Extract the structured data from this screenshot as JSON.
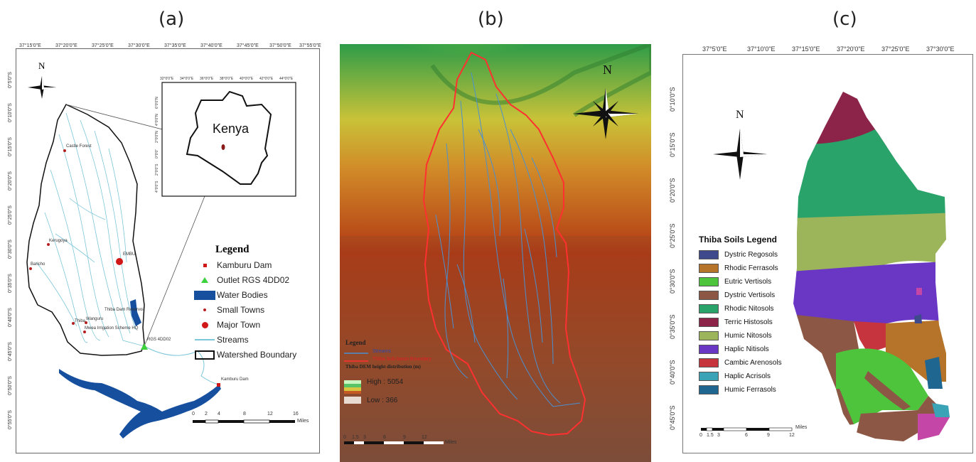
{
  "panels": {
    "a": {
      "letter": "(a)",
      "top_ticks": [
        "37°15'0\"E",
        "37°20'0\"E",
        "37°25'0\"E",
        "37°30'0\"E",
        "37°35'0\"E",
        "37°40'0\"E",
        "37°45'0\"E",
        "37°50'0\"E",
        "37°55'0\"E"
      ],
      "left_ticks": [
        "0°5'0\"S",
        "0°10'0\"S",
        "0°15'0\"S",
        "0°20'0\"S",
        "0°25'0\"S",
        "0°30'0\"S",
        "0°35'0\"S",
        "0°40'0\"S",
        "0°45'0\"S",
        "0°50'0\"S",
        "0°55'0\"S"
      ],
      "north_label": "N",
      "inset_label": "Kenya",
      "inset_top_ticks": [
        "32°0'0\"E",
        "34°0'0\"E",
        "36°0'0\"E",
        "38°0'0\"E",
        "40°0'0\"E",
        "42°0'0\"E",
        "44°0'0\"E"
      ],
      "inset_left_ticks": [
        "6°0'0\"N",
        "4°0'0\"N",
        "2°0'0\"N",
        "0°0'0\"",
        "2°0'0\"S",
        "4°0'0\"S"
      ],
      "places": [
        "Castle Forest",
        "Kerugoya",
        "Baricho",
        "EMBU",
        "Wanguru",
        "Thiba",
        "Mwea Irrigation Scheme HQ",
        "Thiba Dam Reservoir",
        "RGS 4DD02",
        "Kamburu Dam"
      ],
      "legend": {
        "title": "Legend",
        "items": [
          {
            "label": "Kamburu Dam",
            "symbol": "red-square"
          },
          {
            "label": "Outlet RGS 4DD02",
            "symbol": "green-triangle"
          },
          {
            "label": "Water Bodies",
            "symbol": "blue-box"
          },
          {
            "label": "Small Towns",
            "symbol": "small-red-dot"
          },
          {
            "label": "Major Town",
            "symbol": "red-circle"
          },
          {
            "label": "Streams",
            "symbol": "cyan-line"
          },
          {
            "label": "Watershed Boundary",
            "symbol": "black-box"
          }
        ]
      },
      "scale": {
        "ticks": [
          "0",
          "2",
          "4",
          "8",
          "12",
          "16"
        ],
        "unit": "Miles"
      }
    },
    "b": {
      "letter": "(b)",
      "north_label": "N",
      "legend": {
        "title": "Legend",
        "streams": "Streams",
        "boundary": "Thiba Sub-basin Boundary",
        "dem_title": "Thiba DEM height distribution (m)",
        "high": "High : 5054",
        "low": "Low : 366"
      },
      "scale": {
        "ticks": [
          "0",
          "1.5",
          "3",
          "6",
          "9",
          "12"
        ],
        "unit": "Miles"
      }
    },
    "c": {
      "letter": "(c)",
      "top_ticks": [
        "37°5'0\"E",
        "37°10'0\"E",
        "37°15'0\"E",
        "37°20'0\"E",
        "37°25'0\"E",
        "37°30'0\"E"
      ],
      "left_ticks": [
        "0°10'0\"S",
        "0°15'0\"S",
        "0°20'0\"S",
        "0°25'0\"S",
        "0°30'0\"S",
        "0°35'0\"S",
        "0°40'0\"S",
        "0°45'0\"S"
      ],
      "north_label": "N",
      "legend": {
        "title": "Thiba Soils Legend",
        "items": [
          {
            "label": "Dystric Regosols",
            "color": "#3f4a8c"
          },
          {
            "label": "Rhodic Ferrasols",
            "color": "#b5742a"
          },
          {
            "label": "Eutric Vertisols",
            "color": "#4dc43c"
          },
          {
            "label": "Dystric Vertisols",
            "color": "#8c5744"
          },
          {
            "label": "Rhodic Nitosols",
            "color": "#2aa36a"
          },
          {
            "label": "Terric Histosols",
            "color": "#8b2448"
          },
          {
            "label": "Humic Nitosols",
            "color": "#9cb55a"
          },
          {
            "label": "Haplic Nitisols",
            "color": "#6a36c4"
          },
          {
            "label": "Cambic Arenosols",
            "color": "#c6343e"
          },
          {
            "label": "Haplic Acrisols",
            "color": "#3aa3b5"
          },
          {
            "label": "Humic Ferrasols",
            "color": "#1f6690"
          }
        ]
      },
      "scale": {
        "ticks": [
          "0",
          "1.5",
          "3",
          "6",
          "9",
          "12"
        ],
        "unit": "Miles"
      }
    }
  }
}
